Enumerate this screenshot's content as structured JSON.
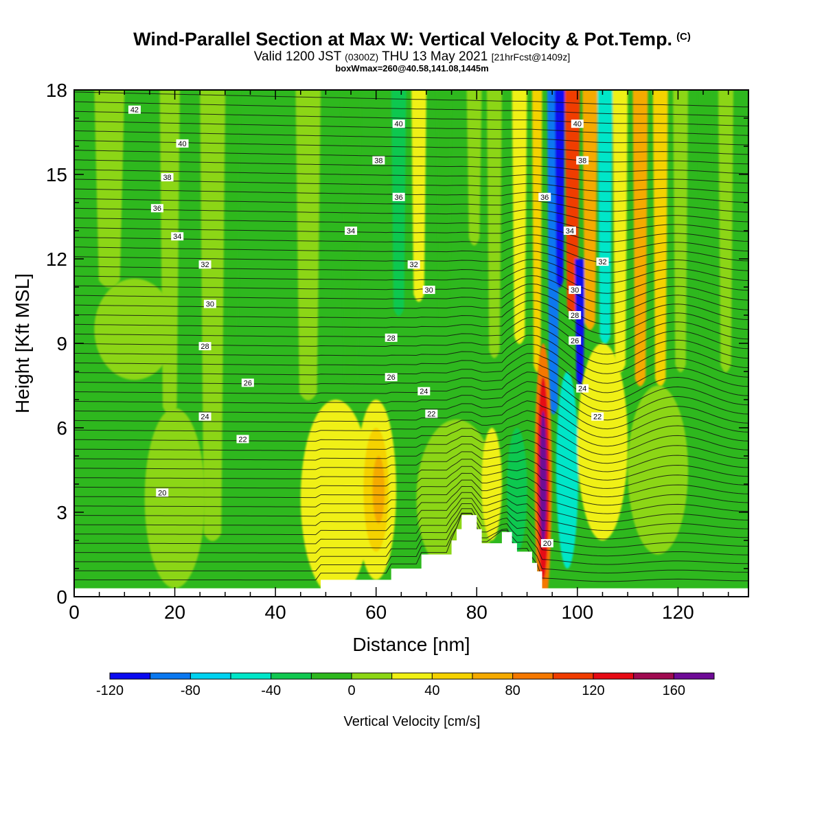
{
  "header": {
    "title": "Wind-Parallel Section at Max W: Vertical Velocity & Pot.Temp.",
    "title_mark": "(C)",
    "subtitle_valid": "Valid 1200 JST",
    "subtitle_utc": "(0300Z)",
    "subtitle_date": "THU 13 May 2021",
    "subtitle_fcst": "[21hrFcst@1409z]",
    "subtitle2": "boxWmax=260@40.58,141.08,1445m"
  },
  "chart_data": {
    "type": "heatmap",
    "title": "Wind-Parallel Section at Max W: Vertical Velocity & Pot.Temp.",
    "xlabel": "Distance [nm]",
    "ylabel": "Height [Kft MSL]",
    "xlim": [
      0,
      134
    ],
    "ylim": [
      0,
      18
    ],
    "x_ticks": [
      "0",
      "20",
      "40",
      "60",
      "80",
      "100",
      "120"
    ],
    "y_ticks": [
      "0",
      "3",
      "6",
      "9",
      "12",
      "15",
      "18"
    ],
    "grid": false,
    "colorbar": {
      "label": "Vertical Velocity [cm/s]",
      "placement": "bottom",
      "levels": [
        -120,
        -100,
        -80,
        -60,
        -40,
        -20,
        0,
        20,
        40,
        60,
        80,
        100,
        120,
        140,
        160,
        180
      ],
      "tick_labels": [
        "-120",
        "-80",
        "-40",
        "0",
        "40",
        "80",
        "120",
        "160"
      ],
      "colors": [
        "#0a0af0",
        "#0a78f0",
        "#00d2f0",
        "#00e6c8",
        "#10c850",
        "#2eb81e",
        "#8cd614",
        "#f0f014",
        "#f5d200",
        "#f5aa00",
        "#f57800",
        "#f03c00",
        "#e60a14",
        "#a00a50",
        "#6e0a96"
      ]
    },
    "background_color": "#2eb81e",
    "velocity_bands": [
      {
        "x": 4,
        "width": 6,
        "y0": 11.0,
        "y1": 18,
        "value": 10
      },
      {
        "x": 17,
        "width": 4,
        "y0": 6.5,
        "y1": 18,
        "value": 10
      },
      {
        "x": 25,
        "width": 5,
        "y0": 2.0,
        "y1": 18,
        "value": 10
      },
      {
        "x": 30,
        "width": 3,
        "y0": 9,
        "y1": 18,
        "value": -10
      },
      {
        "x": 44,
        "width": 5,
        "y0": 7,
        "y1": 18,
        "value": 10
      },
      {
        "x": 53,
        "width": 4,
        "y0": 7.5,
        "y1": 18,
        "value": -10
      },
      {
        "x": 63,
        "width": 3,
        "y0": 10,
        "y1": 18,
        "value": -30
      },
      {
        "x": 67,
        "width": 3,
        "y0": 10.5,
        "y1": 18,
        "value": 30
      },
      {
        "x": 72,
        "width": 3,
        "y0": 9.5,
        "y1": 18,
        "value": -10
      },
      {
        "x": 78,
        "width": 3,
        "y0": 12.5,
        "y1": 18,
        "value": 10
      },
      {
        "x": 82,
        "width": 3,
        "y0": 8.5,
        "y1": 18,
        "value": 10
      },
      {
        "x": 87,
        "width": 3,
        "y0": 9,
        "y1": 18,
        "value": 30
      },
      {
        "x": 91,
        "width": 2,
        "y0": 8,
        "y1": 18,
        "value": 50
      },
      {
        "x": 94,
        "width": 2.5,
        "y0": 6.5,
        "y1": 18,
        "value": -90
      },
      {
        "x": 95.5,
        "width": 2,
        "y0": 11,
        "y1": 18,
        "value": -110
      },
      {
        "x": 97.5,
        "width": 3,
        "y0": 10,
        "y1": 18,
        "value": 110
      },
      {
        "x": 99.5,
        "width": 2,
        "y0": 7.5,
        "y1": 12,
        "value": -110
      },
      {
        "x": 101,
        "width": 3,
        "y0": 9.5,
        "y1": 18,
        "value": 70
      },
      {
        "x": 104,
        "width": 3,
        "y0": 9,
        "y1": 18,
        "value": -50
      },
      {
        "x": 107,
        "width": 3,
        "y0": 8,
        "y1": 18,
        "value": 30
      },
      {
        "x": 111,
        "width": 3,
        "y0": 7.5,
        "y1": 18,
        "value": 70
      },
      {
        "x": 115,
        "width": 3,
        "y0": 7.5,
        "y1": 18,
        "value": 50
      },
      {
        "x": 119,
        "width": 3,
        "y0": 8,
        "y1": 18,
        "value": 10
      },
      {
        "x": 124,
        "width": 3,
        "y0": 8,
        "y1": 18,
        "value": -10
      },
      {
        "x": 128,
        "width": 3,
        "y0": 8,
        "y1": 18,
        "value": 10
      }
    ],
    "velocity_blobs": [
      {
        "x": 12,
        "y": 9.5,
        "rx": 8,
        "ry": 1.8,
        "value": 10
      },
      {
        "x": 20,
        "y": 3.5,
        "rx": 6,
        "ry": 3.2,
        "value": 10
      },
      {
        "x": 52,
        "y": 3.5,
        "rx": 7,
        "ry": 3.5,
        "value": 30
      },
      {
        "x": 60,
        "y": 3.8,
        "rx": 4,
        "ry": 3.2,
        "value": 30
      },
      {
        "x": 60,
        "y": 3.8,
        "rx": 2.5,
        "ry": 2.2,
        "value": 50
      },
      {
        "x": 60.5,
        "y": 3.8,
        "rx": 1.2,
        "ry": 1.2,
        "value": 70
      },
      {
        "x": 76,
        "y": 3.5,
        "rx": 8,
        "ry": 2.8,
        "value": 10
      },
      {
        "x": 83,
        "y": 4.0,
        "rx": 2,
        "ry": 2.0,
        "value": 30
      },
      {
        "x": 88,
        "y": 3.8,
        "rx": 2,
        "ry": 2.2,
        "value": -30
      },
      {
        "x": 93.2,
        "y": 4.2,
        "rx": 1.7,
        "ry": 4.8,
        "value": 90
      },
      {
        "x": 93.2,
        "y": 4.2,
        "rx": 1.2,
        "ry": 3.6,
        "value": 130
      },
      {
        "x": 93.2,
        "y": 4.2,
        "rx": 0.7,
        "ry": 2.4,
        "value": 170
      },
      {
        "x": 98,
        "y": 4.5,
        "rx": 2.2,
        "ry": 3.5,
        "value": -50
      },
      {
        "x": 105,
        "y": 5.5,
        "rx": 5,
        "ry": 3.5,
        "value": 30
      },
      {
        "x": 105,
        "y": 5.5,
        "rx": 3,
        "ry": 2.5,
        "value": 30
      },
      {
        "x": 116,
        "y": 4.5,
        "rx": 6,
        "ry": 3.0,
        "value": 10
      }
    ],
    "terrain_profile": {
      "x": [
        0,
        2,
        48,
        49,
        62,
        63,
        68,
        69,
        74,
        75,
        76,
        77,
        79,
        80,
        81,
        82,
        85,
        86,
        87,
        88,
        90,
        91,
        92,
        93,
        97,
        98,
        134
      ],
      "height": [
        0.3,
        0.3,
        0.3,
        0.6,
        0.6,
        1.0,
        1.0,
        1.5,
        1.5,
        2.0,
        2.4,
        2.9,
        2.9,
        2.4,
        1.9,
        1.9,
        2.3,
        2.3,
        1.9,
        1.6,
        1.6,
        1.2,
        0.9,
        0.3,
        0.3,
        0.3,
        0.3
      ]
    },
    "theta_labels": [
      {
        "text": "42",
        "x": 12,
        "y": 17.3
      },
      {
        "text": "40",
        "x": 21.5,
        "y": 16.1
      },
      {
        "text": "38",
        "x": 18.5,
        "y": 14.9
      },
      {
        "text": "36",
        "x": 16.5,
        "y": 13.8
      },
      {
        "text": "34",
        "x": 20.5,
        "y": 12.8
      },
      {
        "text": "32",
        "x": 26,
        "y": 11.8
      },
      {
        "text": "30",
        "x": 27,
        "y": 10.4
      },
      {
        "text": "28",
        "x": 26,
        "y": 8.9
      },
      {
        "text": "26",
        "x": 34.5,
        "y": 7.6
      },
      {
        "text": "24",
        "x": 26,
        "y": 6.4
      },
      {
        "text": "22",
        "x": 33.5,
        "y": 5.6
      },
      {
        "text": "20",
        "x": 17.5,
        "y": 3.7
      },
      {
        "text": "40",
        "x": 64.5,
        "y": 16.8
      },
      {
        "text": "38",
        "x": 60.5,
        "y": 15.5
      },
      {
        "text": "36",
        "x": 64.5,
        "y": 14.2
      },
      {
        "text": "34",
        "x": 55,
        "y": 13.0
      },
      {
        "text": "32",
        "x": 67.5,
        "y": 11.8
      },
      {
        "text": "30",
        "x": 70.5,
        "y": 10.9
      },
      {
        "text": "28",
        "x": 63,
        "y": 9.2
      },
      {
        "text": "26",
        "x": 63,
        "y": 7.8
      },
      {
        "text": "24",
        "x": 69.5,
        "y": 7.3
      },
      {
        "text": "22",
        "x": 71,
        "y": 6.5
      },
      {
        "text": "40",
        "x": 100,
        "y": 16.8
      },
      {
        "text": "38",
        "x": 101,
        "y": 15.5
      },
      {
        "text": "36",
        "x": 93.5,
        "y": 14.2
      },
      {
        "text": "34",
        "x": 98.5,
        "y": 13.0
      },
      {
        "text": "32",
        "x": 105,
        "y": 11.9
      },
      {
        "text": "30",
        "x": 99.5,
        "y": 10.9
      },
      {
        "text": "28",
        "x": 99.5,
        "y": 10.0
      },
      {
        "text": "26",
        "x": 99.5,
        "y": 9.1
      },
      {
        "text": "24",
        "x": 101,
        "y": 7.4
      },
      {
        "text": "22",
        "x": 104,
        "y": 6.4
      },
      {
        "text": "20",
        "x": 94,
        "y": 1.9
      }
    ]
  }
}
